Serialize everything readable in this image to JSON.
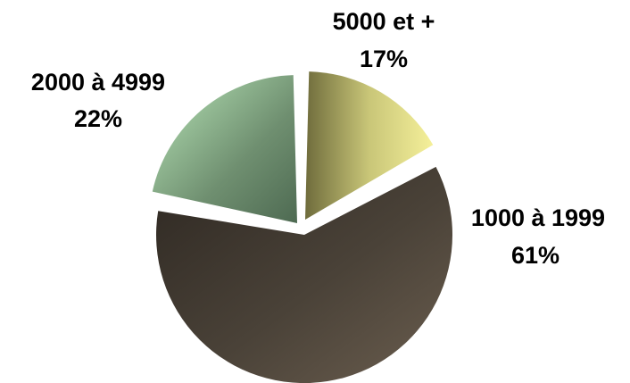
{
  "chart_data": {
    "type": "pie",
    "title": "",
    "slices": [
      {
        "label": "1000 à 1999",
        "value": 61,
        "percent_label": "61%",
        "color": "#4a4238",
        "highlight": "#6b5e4f"
      },
      {
        "label": "2000 à 4999",
        "value": 22,
        "percent_label": "22%",
        "color": "#6f8f70",
        "highlight": "#b8e6b8"
      },
      {
        "label": "5000 et +",
        "value": 17,
        "percent_label": "17%",
        "color": "#8a8850",
        "highlight": "#f5f09a"
      }
    ],
    "exploded": true,
    "legend": "none"
  }
}
